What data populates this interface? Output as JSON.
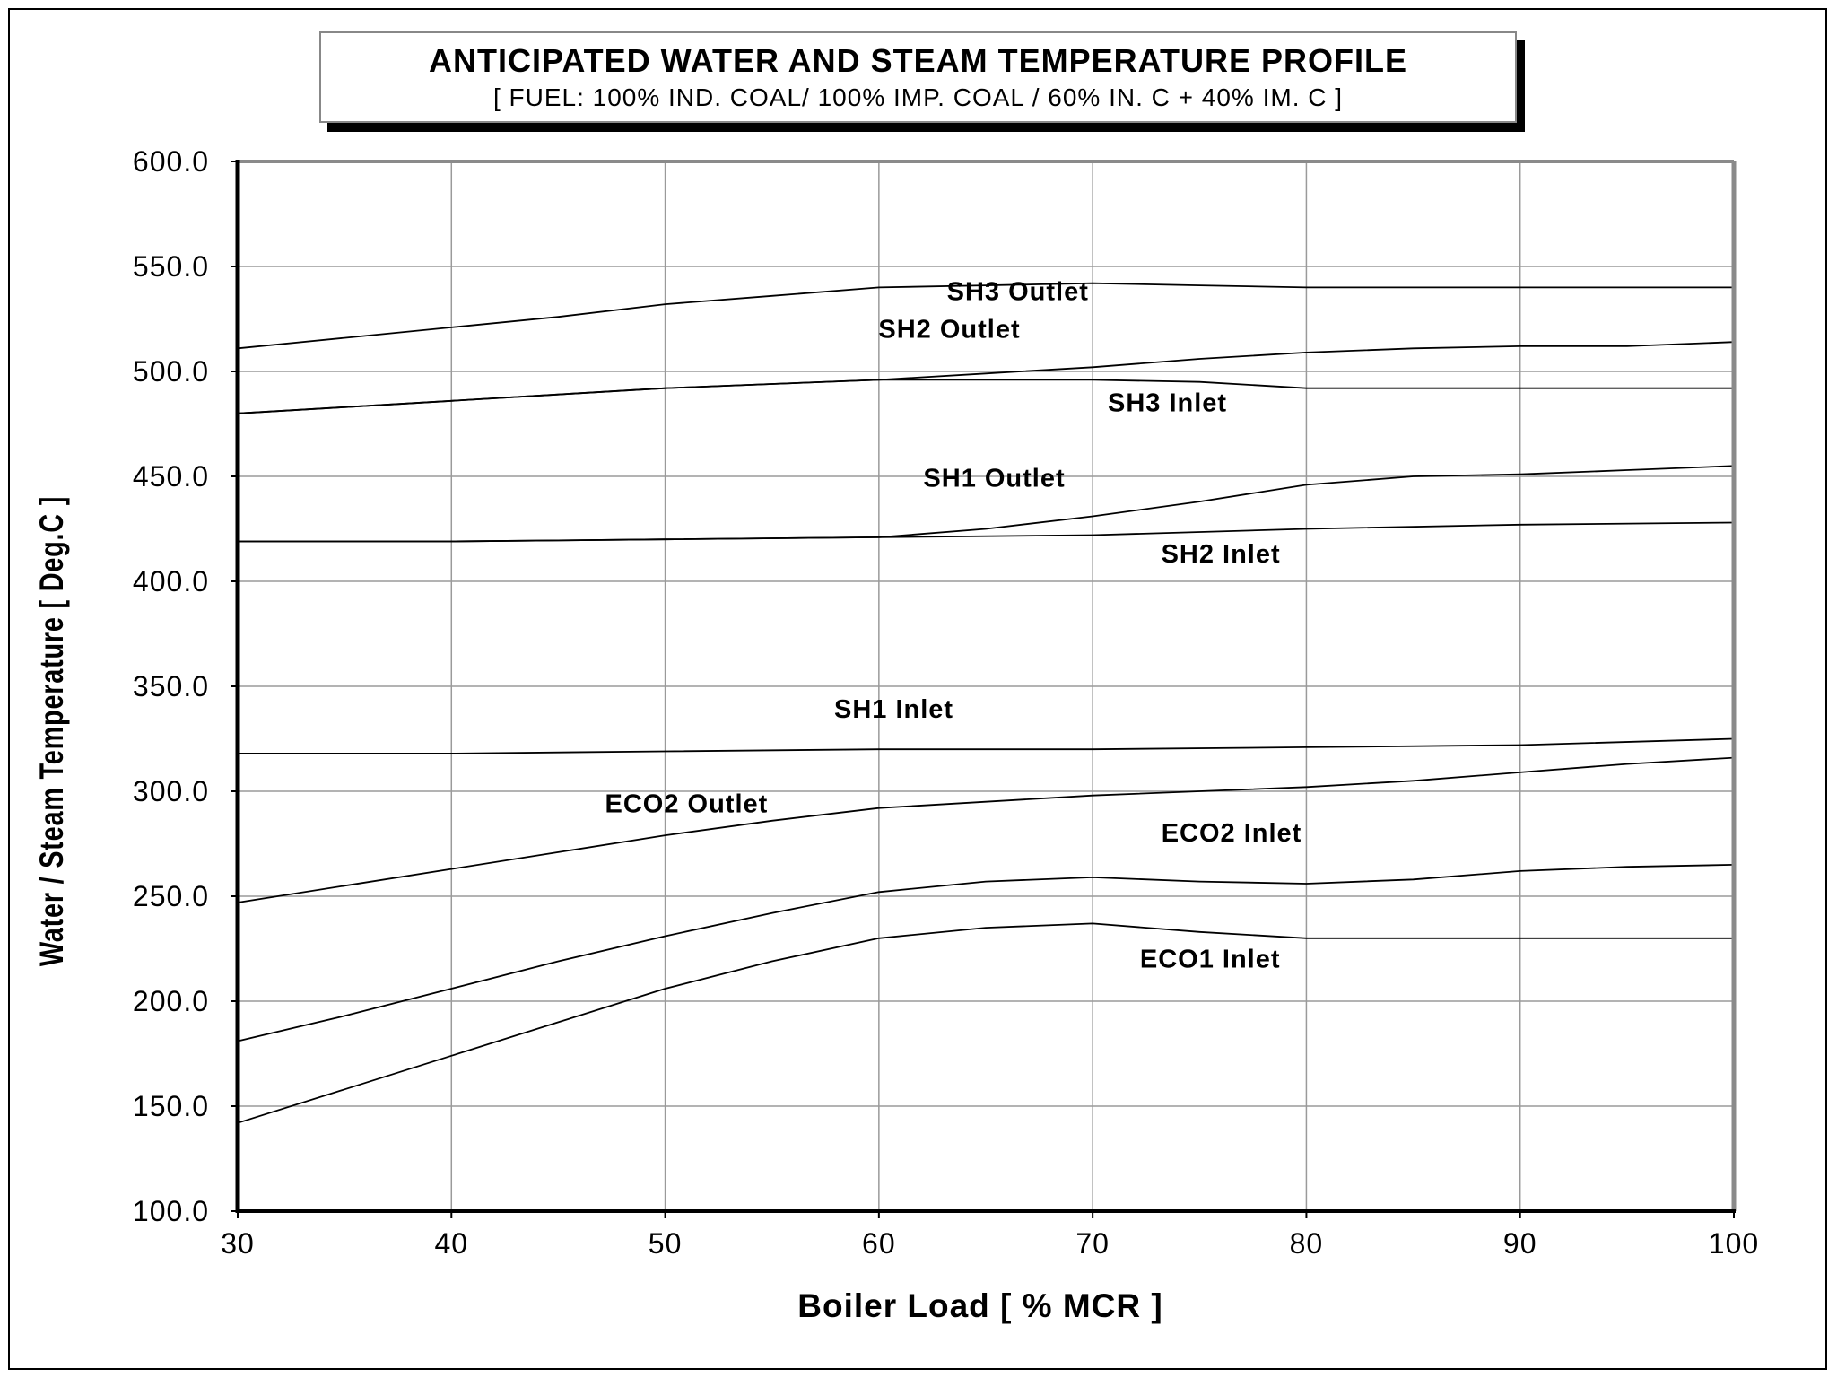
{
  "chart_data": {
    "type": "line",
    "title": "ANTICIPATED WATER AND STEAM TEMPERATURE PROFILE",
    "subtitle": "[ FUEL: 100% IND. COAL/ 100% IMP. COAL / 60% IN. C + 40% IM. C ]",
    "xlabel": "Boiler Load [ % MCR ]",
    "ylabel": "Water / Steam Temperature [ Deg.C ]",
    "xlim": [
      30,
      100
    ],
    "ylim": [
      100,
      600
    ],
    "x_ticks": [
      "30",
      "40",
      "50",
      "60",
      "70",
      "80",
      "90",
      "100"
    ],
    "y_ticks": [
      "100.0",
      "150.0",
      "200.0",
      "250.0",
      "300.0",
      "350.0",
      "400.0",
      "450.0",
      "500.0",
      "550.0",
      "600.0"
    ],
    "grid": true,
    "series": [
      {
        "name": "SH3 Outlet",
        "x": [
          30,
          35,
          40,
          45,
          50,
          55,
          60,
          65,
          70,
          75,
          80,
          85,
          90,
          95,
          100
        ],
        "y": [
          511,
          516,
          521,
          526,
          532,
          536,
          540,
          541,
          542,
          541,
          540,
          540,
          540,
          540,
          540
        ]
      },
      {
        "name": "SH2 Outlet",
        "x": [
          30,
          35,
          40,
          45,
          50,
          55,
          60,
          65,
          70,
          75,
          80,
          85,
          90,
          95,
          100
        ],
        "y": [
          480,
          483,
          486,
          489,
          492,
          494,
          496,
          499,
          502,
          506,
          509,
          511,
          512,
          512,
          514
        ]
      },
      {
        "name": "SH3 Inlet",
        "x": [
          30,
          35,
          40,
          45,
          50,
          55,
          60,
          65,
          70,
          75,
          80,
          85,
          90,
          95,
          100
        ],
        "y": [
          480,
          483,
          486,
          489,
          492,
          494,
          496,
          496,
          496,
          495,
          492,
          492,
          492,
          492,
          492
        ]
      },
      {
        "name": "SH1 Outlet",
        "x": [
          30,
          40,
          50,
          60,
          65,
          70,
          75,
          80,
          85,
          90,
          95,
          100
        ],
        "y": [
          419,
          419,
          420,
          421,
          425,
          431,
          438,
          446,
          450,
          451,
          453,
          455
        ]
      },
      {
        "name": "SH2 Inlet",
        "x": [
          30,
          40,
          50,
          60,
          70,
          80,
          90,
          100
        ],
        "y": [
          419,
          419,
          420,
          421,
          422,
          425,
          427,
          428
        ]
      },
      {
        "name": "SH1 Inlet",
        "x": [
          30,
          40,
          50,
          60,
          70,
          80,
          90,
          100
        ],
        "y": [
          318,
          318,
          319,
          320,
          320,
          321,
          322,
          325
        ]
      },
      {
        "name": "ECO2 Outlet",
        "x": [
          30,
          35,
          40,
          45,
          50,
          55,
          60,
          65,
          70,
          75,
          80,
          85,
          90,
          95,
          100
        ],
        "y": [
          247,
          255,
          263,
          271,
          279,
          286,
          292,
          295,
          298,
          300,
          302,
          305,
          309,
          313,
          316
        ]
      },
      {
        "name": "ECO2 Inlet",
        "x": [
          30,
          35,
          40,
          45,
          50,
          55,
          60,
          65,
          70,
          75,
          80,
          85,
          90,
          95,
          100
        ],
        "y": [
          181,
          193,
          206,
          219,
          231,
          242,
          252,
          257,
          259,
          257,
          256,
          258,
          262,
          264,
          265
        ]
      },
      {
        "name": "ECO1 Inlet",
        "x": [
          30,
          35,
          40,
          45,
          50,
          55,
          60,
          65,
          70,
          75,
          80,
          85,
          90,
          95,
          100
        ],
        "y": [
          142,
          158,
          174,
          190,
          206,
          219,
          230,
          235,
          237,
          233,
          230,
          230,
          230,
          230,
          230
        ]
      }
    ],
    "annotations": [
      {
        "text": "SH3 Outlet",
        "x": 66.5,
        "y": 534
      },
      {
        "text": "SH2 Outlet",
        "x": 63.3,
        "y": 516
      },
      {
        "text": "SH3 Inlet",
        "x": 73.5,
        "y": 481
      },
      {
        "text": "SH1 Outlet",
        "x": 65.4,
        "y": 445
      },
      {
        "text": "SH2 Inlet",
        "x": 76.0,
        "y": 409
      },
      {
        "text": "SH1 Inlet",
        "x": 60.7,
        "y": 335
      },
      {
        "text": "ECO2 Outlet",
        "x": 51.0,
        "y": 290
      },
      {
        "text": "ECO2 Inlet",
        "x": 76.5,
        "y": 276
      },
      {
        "text": "ECO1 Inlet",
        "x": 75.5,
        "y": 216
      }
    ]
  }
}
